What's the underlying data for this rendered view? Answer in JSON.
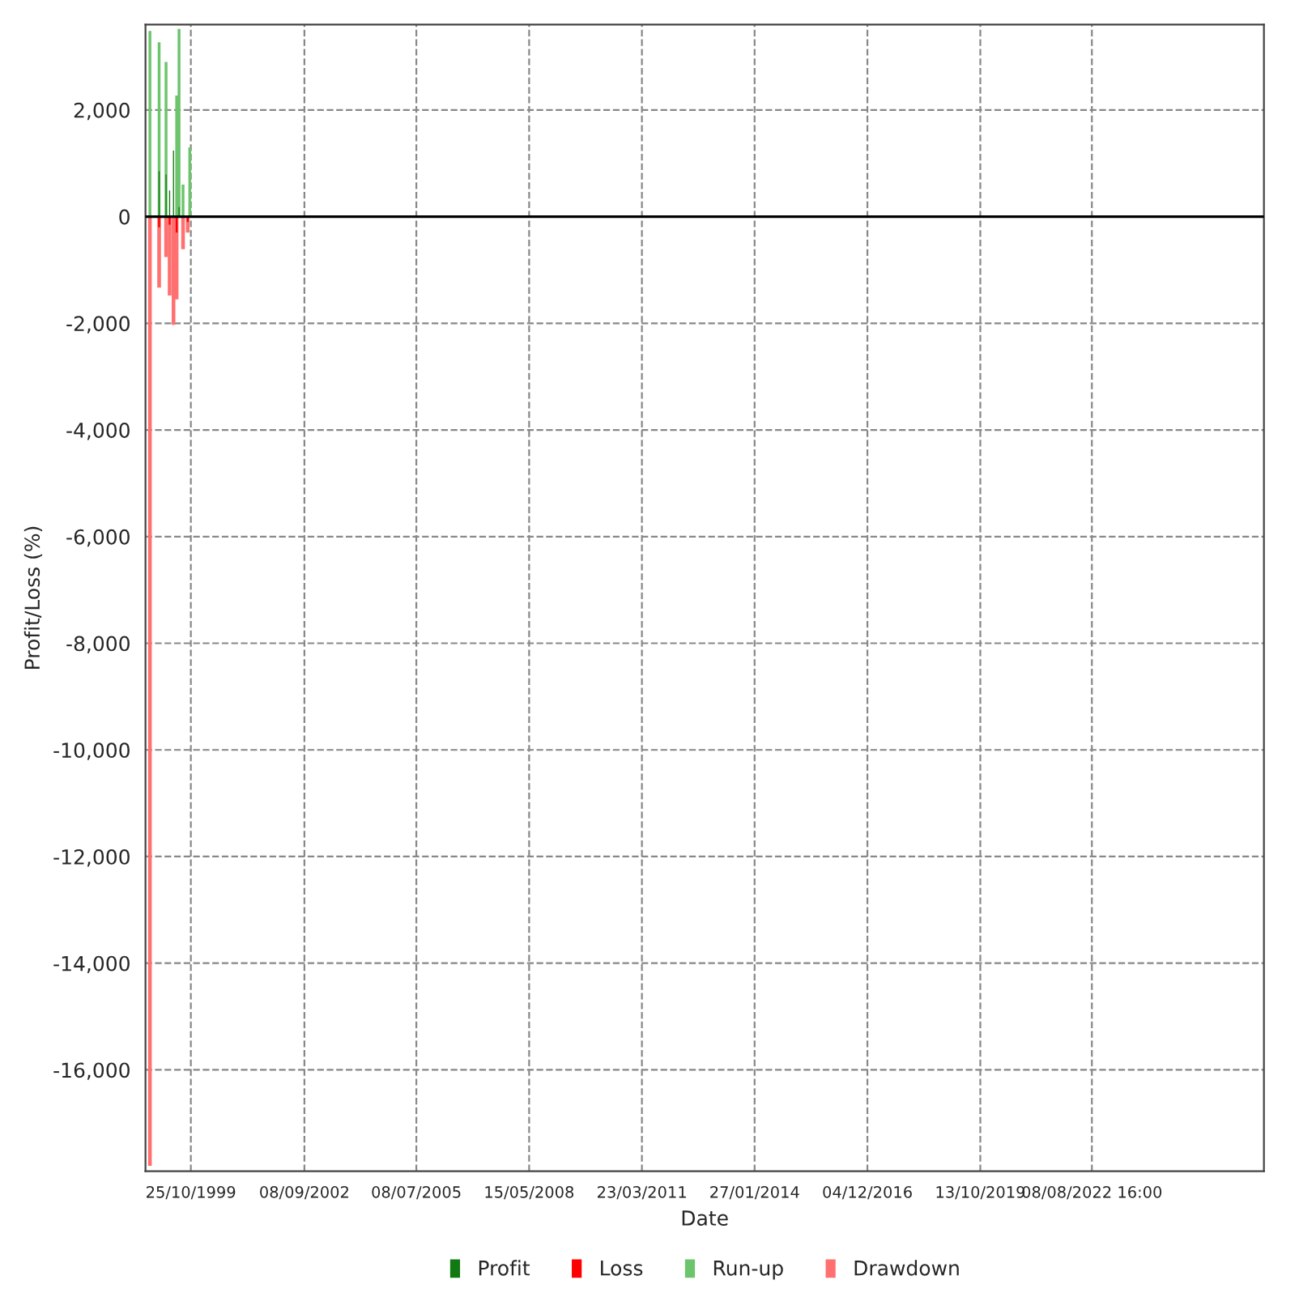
{
  "chart_data": {
    "type": "bar",
    "xlabel": "Date",
    "ylabel": "Profit/Loss (%)",
    "x": [
      "1998-10-12",
      "1999-01-05",
      "1999-03-10",
      "1999-04-12",
      "1999-05-18",
      "1999-06-16",
      "1999-07-08",
      "1999-08-14",
      "1999-09-26",
      "1999-10-15"
    ],
    "series": [
      {
        "name": "Profit",
        "color": "#127812",
        "values": [
          null,
          850,
          790,
          490,
          1240,
          null,
          180,
          null,
          null,
          null
        ]
      },
      {
        "name": "Loss",
        "color": "#ff0000",
        "values": [
          null,
          -200,
          null,
          -150,
          null,
          -300,
          null,
          null,
          -100,
          null
        ]
      },
      {
        "name": "Run-up",
        "color": "#6cc46c",
        "values": [
          3480,
          3270,
          2900,
          null,
          null,
          2270,
          3520,
          600,
          null,
          1300
        ]
      },
      {
        "name": "Drawdown",
        "color": "#ff7070",
        "values": [
          -17800,
          -1330,
          -760,
          -1480,
          -2030,
          -1550,
          null,
          -610,
          -300,
          null
        ]
      }
    ],
    "xlim": [
      "1998-09-01",
      "2026-12-15"
    ],
    "xticks": [
      {
        "value": "1999-10-25",
        "label": "25/10/1999"
      },
      {
        "value": "2002-09-08",
        "label": "08/09/2002"
      },
      {
        "value": "2005-07-08",
        "label": "08/07/2005"
      },
      {
        "value": "2008-05-15",
        "label": "15/05/2008"
      },
      {
        "value": "2011-03-23",
        "label": "23/03/2011"
      },
      {
        "value": "2014-01-27",
        "label": "27/01/2014"
      },
      {
        "value": "2016-12-04",
        "label": "04/12/2016"
      },
      {
        "value": "2019-10-13",
        "label": "13/10/2019"
      },
      {
        "value": "2022-08-08T16:00",
        "label": "08/08/2022 16:00"
      }
    ],
    "ylim": [
      -17900,
      3600
    ],
    "yticks": [
      {
        "value": -16000,
        "label": "-16,000"
      },
      {
        "value": -14000,
        "label": "-14,000"
      },
      {
        "value": -12000,
        "label": "-12,000"
      },
      {
        "value": -10000,
        "label": "-10,000"
      },
      {
        "value": -8000,
        "label": "-8,000"
      },
      {
        "value": -6000,
        "label": "-6,000"
      },
      {
        "value": -4000,
        "label": "-4,000"
      },
      {
        "value": -2000,
        "label": "-2,000"
      },
      {
        "value": 0,
        "label": "0"
      },
      {
        "value": 2000,
        "label": "2,000"
      }
    ],
    "ref_lines": [
      {
        "axis": "y",
        "value": 0,
        "color": "#000000"
      }
    ],
    "grid": true,
    "legend": "bottom"
  }
}
